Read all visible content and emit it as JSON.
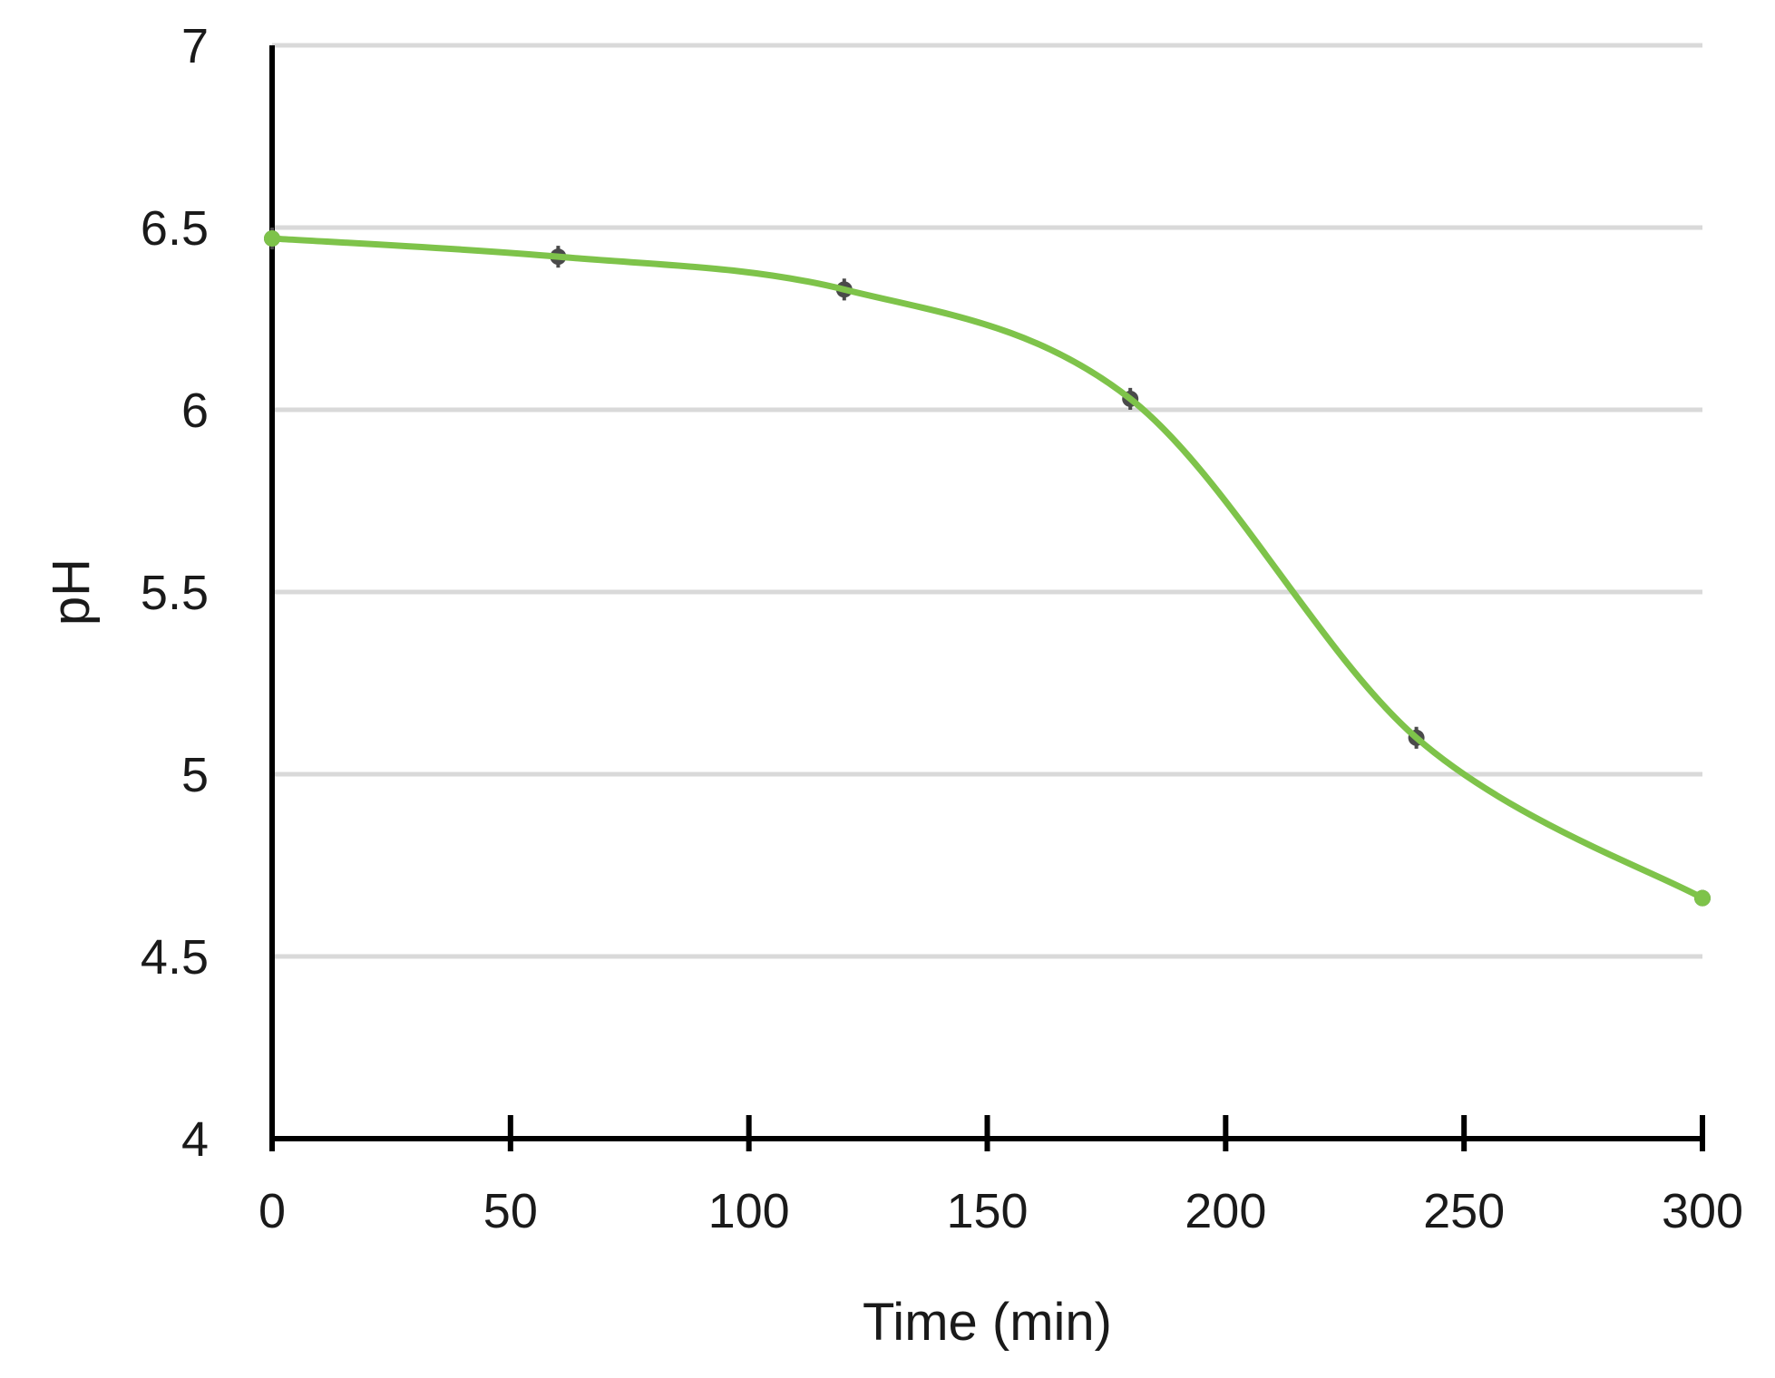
{
  "chart_data": {
    "type": "line",
    "xlabel": "Time (min)",
    "ylabel": "pH",
    "xlim": [
      0,
      300
    ],
    "ylim": [
      4,
      7
    ],
    "x_ticks": [
      "0",
      "50",
      "100",
      "150",
      "200",
      "250",
      "300"
    ],
    "y_ticks": [
      "4",
      "4.5",
      "5",
      "5.5",
      "6",
      "6.5",
      "7"
    ],
    "grid": "horizontal",
    "legend": "none",
    "series": [
      {
        "x": [
          0,
          60,
          120,
          180,
          240,
          300
        ],
        "y": [
          6.47,
          6.42,
          6.33,
          6.03,
          5.1,
          4.66
        ],
        "error": [
          0.03,
          0.03,
          0.03,
          0.03,
          0.03,
          0.02
        ],
        "color": "#7ec34a",
        "marker_color": "#4a4a4a",
        "smooth": true
      }
    ]
  }
}
